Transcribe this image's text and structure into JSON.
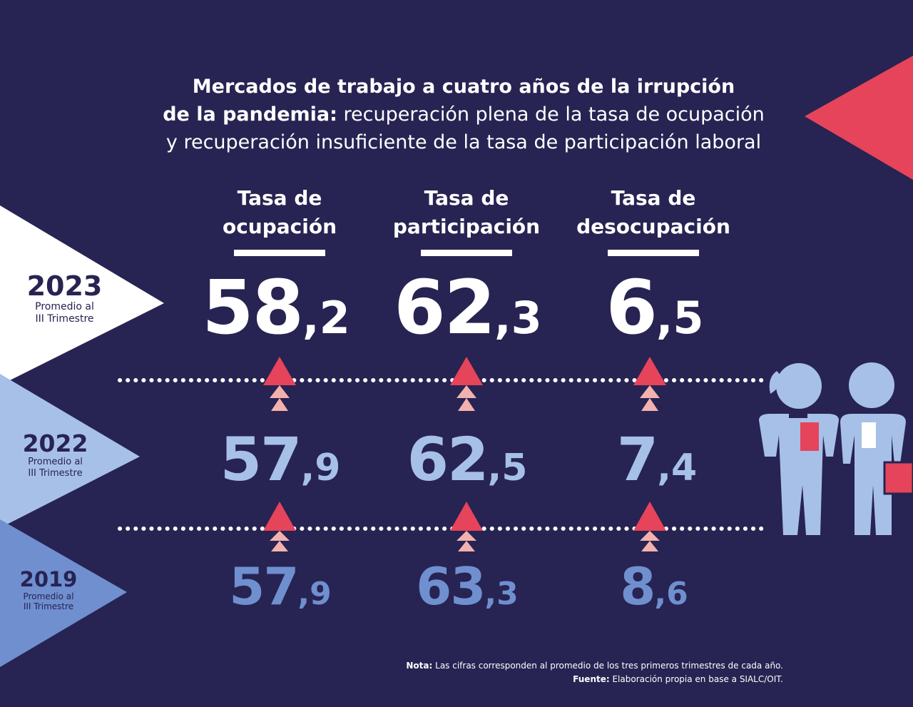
{
  "title": {
    "line1": "Mercados de trabajo a cuatro años de la irrupción",
    "line2_bold": "de la pandemia:",
    "line2_rest": " recuperación plena de la tasa de ocupación",
    "line3": "y recuperación insuficiente de la tasa de participación laboral"
  },
  "columns": [
    {
      "line1": "Tasa de",
      "line2": "ocupación"
    },
    {
      "line1": "Tasa de",
      "line2": "participación"
    },
    {
      "line1": "Tasa de",
      "line2": "desocupación"
    }
  ],
  "rows": [
    {
      "year": "2023",
      "sub1": "Promedio al",
      "sub2": "III Trimestre",
      "values": [
        {
          "int": "58",
          "dec": ",2"
        },
        {
          "int": "62",
          "dec": ",3"
        },
        {
          "int": "6",
          "dec": ",5"
        }
      ]
    },
    {
      "year": "2022",
      "sub1": "Promedio al",
      "sub2": "III Trimestre",
      "values": [
        {
          "int": "57",
          "dec": ",9"
        },
        {
          "int": "62",
          "dec": ",5"
        },
        {
          "int": "7",
          "dec": ",4"
        }
      ]
    },
    {
      "year": "2019",
      "sub1": "Promedio al",
      "sub2": "III Trimestre",
      "values": [
        {
          "int": "57",
          "dec": ",9"
        },
        {
          "int": "63",
          "dec": ",3"
        },
        {
          "int": "8",
          "dec": ",6"
        }
      ]
    }
  ],
  "notes": {
    "nota_label": "Nota:",
    "nota_text": " Las cifras corresponden al promedio de los tres primeros trimestres de cada año.",
    "fuente_label": "Fuente:",
    "fuente_text": " Elaboración propia en base a SIALC/OIT."
  },
  "colors": {
    "background": "#272352",
    "accent_red": "#e5445a",
    "accent_pink": "#f3b1ae",
    "value_2023": "#ffffff",
    "value_2022": "#a7c0e8",
    "value_2019": "#6f8fcf"
  },
  "icons": [
    "woman-icon",
    "man-icon",
    "up-arrow-icon"
  ]
}
